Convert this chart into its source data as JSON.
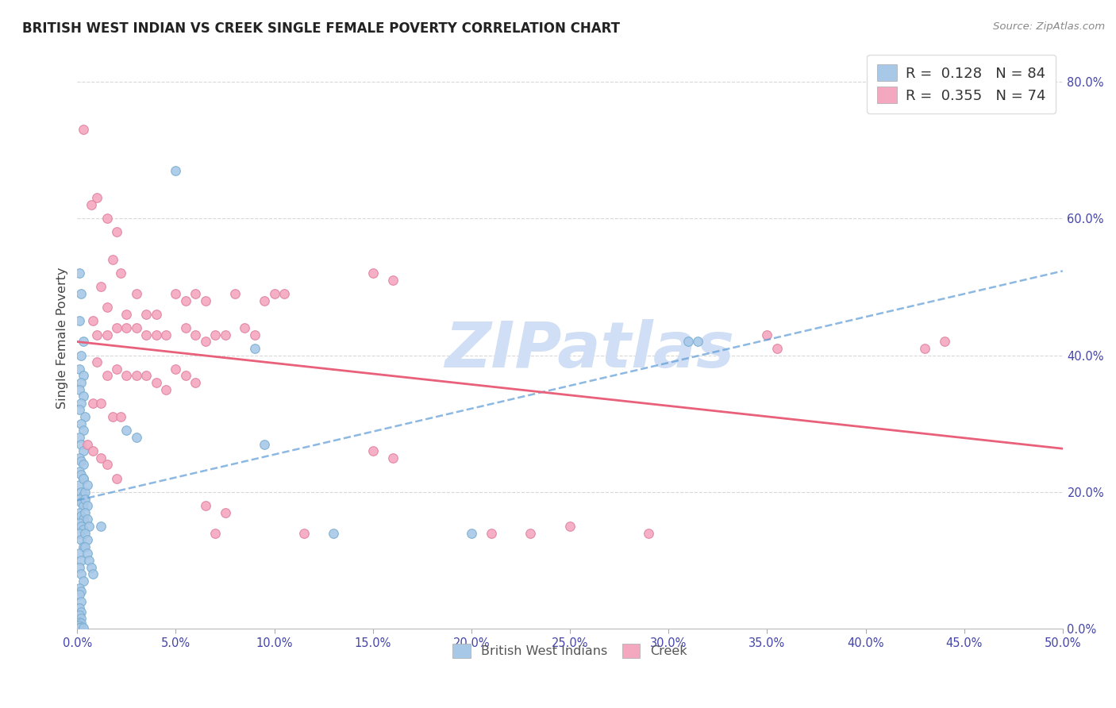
{
  "title": "BRITISH WEST INDIAN VS CREEK SINGLE FEMALE POVERTY CORRELATION CHART",
  "source": "Source: ZipAtlas.com",
  "ylabel": "Single Female Poverty",
  "x_min": 0.0,
  "x_max": 0.5,
  "y_min": 0.0,
  "y_max": 0.85,
  "x_ticks": [
    0.0,
    0.05,
    0.1,
    0.15,
    0.2,
    0.25,
    0.3,
    0.35,
    0.4,
    0.45,
    0.5
  ],
  "y_ticks_right": [
    0.0,
    0.2,
    0.4,
    0.6,
    0.8
  ],
  "blue_R": 0.128,
  "blue_N": 84,
  "pink_R": 0.355,
  "pink_N": 74,
  "blue_scatter": [
    [
      0.001,
      0.52
    ],
    [
      0.002,
      0.49
    ],
    [
      0.001,
      0.45
    ],
    [
      0.003,
      0.42
    ],
    [
      0.002,
      0.4
    ],
    [
      0.001,
      0.38
    ],
    [
      0.003,
      0.37
    ],
    [
      0.002,
      0.36
    ],
    [
      0.001,
      0.35
    ],
    [
      0.003,
      0.34
    ],
    [
      0.002,
      0.33
    ],
    [
      0.001,
      0.32
    ],
    [
      0.004,
      0.31
    ],
    [
      0.002,
      0.3
    ],
    [
      0.003,
      0.29
    ],
    [
      0.001,
      0.28
    ],
    [
      0.002,
      0.27
    ],
    [
      0.003,
      0.26
    ],
    [
      0.001,
      0.25
    ],
    [
      0.002,
      0.245
    ],
    [
      0.003,
      0.24
    ],
    [
      0.001,
      0.23
    ],
    [
      0.002,
      0.225
    ],
    [
      0.003,
      0.22
    ],
    [
      0.001,
      0.21
    ],
    [
      0.002,
      0.2
    ],
    [
      0.003,
      0.195
    ],
    [
      0.001,
      0.19
    ],
    [
      0.002,
      0.185
    ],
    [
      0.003,
      0.18
    ],
    [
      0.001,
      0.17
    ],
    [
      0.002,
      0.165
    ],
    [
      0.003,
      0.16
    ],
    [
      0.001,
      0.155
    ],
    [
      0.002,
      0.15
    ],
    [
      0.003,
      0.145
    ],
    [
      0.001,
      0.14
    ],
    [
      0.002,
      0.13
    ],
    [
      0.003,
      0.12
    ],
    [
      0.001,
      0.11
    ],
    [
      0.002,
      0.1
    ],
    [
      0.001,
      0.09
    ],
    [
      0.002,
      0.08
    ],
    [
      0.003,
      0.07
    ],
    [
      0.001,
      0.06
    ],
    [
      0.002,
      0.055
    ],
    [
      0.001,
      0.05
    ],
    [
      0.002,
      0.04
    ],
    [
      0.001,
      0.03
    ],
    [
      0.002,
      0.025
    ],
    [
      0.001,
      0.02
    ],
    [
      0.002,
      0.015
    ],
    [
      0.001,
      0.01
    ],
    [
      0.002,
      0.008
    ],
    [
      0.001,
      0.005
    ],
    [
      0.002,
      0.003
    ],
    [
      0.001,
      0.001
    ],
    [
      0.003,
      0.001
    ],
    [
      0.003,
      0.22
    ],
    [
      0.004,
      0.2
    ],
    [
      0.005,
      0.21
    ],
    [
      0.004,
      0.19
    ],
    [
      0.005,
      0.18
    ],
    [
      0.004,
      0.17
    ],
    [
      0.005,
      0.16
    ],
    [
      0.006,
      0.15
    ],
    [
      0.004,
      0.14
    ],
    [
      0.005,
      0.13
    ],
    [
      0.004,
      0.12
    ],
    [
      0.005,
      0.11
    ],
    [
      0.006,
      0.1
    ],
    [
      0.007,
      0.09
    ],
    [
      0.008,
      0.08
    ],
    [
      0.05,
      0.67
    ],
    [
      0.025,
      0.29
    ],
    [
      0.03,
      0.28
    ],
    [
      0.09,
      0.41
    ],
    [
      0.095,
      0.27
    ],
    [
      0.13,
      0.14
    ],
    [
      0.31,
      0.42
    ],
    [
      0.315,
      0.42
    ],
    [
      0.2,
      0.14
    ],
    [
      0.012,
      0.15
    ]
  ],
  "pink_scatter": [
    [
      0.003,
      0.73
    ],
    [
      0.01,
      0.63
    ],
    [
      0.007,
      0.62
    ],
    [
      0.015,
      0.6
    ],
    [
      0.02,
      0.58
    ],
    [
      0.018,
      0.54
    ],
    [
      0.022,
      0.52
    ],
    [
      0.012,
      0.5
    ],
    [
      0.03,
      0.49
    ],
    [
      0.015,
      0.47
    ],
    [
      0.025,
      0.46
    ],
    [
      0.035,
      0.46
    ],
    [
      0.04,
      0.46
    ],
    [
      0.05,
      0.49
    ],
    [
      0.055,
      0.48
    ],
    [
      0.06,
      0.49
    ],
    [
      0.065,
      0.48
    ],
    [
      0.08,
      0.49
    ],
    [
      0.095,
      0.48
    ],
    [
      0.1,
      0.49
    ],
    [
      0.105,
      0.49
    ],
    [
      0.15,
      0.52
    ],
    [
      0.16,
      0.51
    ],
    [
      0.008,
      0.45
    ],
    [
      0.01,
      0.43
    ],
    [
      0.015,
      0.43
    ],
    [
      0.02,
      0.44
    ],
    [
      0.025,
      0.44
    ],
    [
      0.03,
      0.44
    ],
    [
      0.035,
      0.43
    ],
    [
      0.04,
      0.43
    ],
    [
      0.045,
      0.43
    ],
    [
      0.055,
      0.44
    ],
    [
      0.06,
      0.43
    ],
    [
      0.065,
      0.42
    ],
    [
      0.07,
      0.43
    ],
    [
      0.075,
      0.43
    ],
    [
      0.085,
      0.44
    ],
    [
      0.09,
      0.43
    ],
    [
      0.01,
      0.39
    ],
    [
      0.015,
      0.37
    ],
    [
      0.02,
      0.38
    ],
    [
      0.025,
      0.37
    ],
    [
      0.03,
      0.37
    ],
    [
      0.035,
      0.37
    ],
    [
      0.04,
      0.36
    ],
    [
      0.045,
      0.35
    ],
    [
      0.05,
      0.38
    ],
    [
      0.055,
      0.37
    ],
    [
      0.06,
      0.36
    ],
    [
      0.008,
      0.33
    ],
    [
      0.012,
      0.33
    ],
    [
      0.018,
      0.31
    ],
    [
      0.022,
      0.31
    ],
    [
      0.005,
      0.27
    ],
    [
      0.008,
      0.26
    ],
    [
      0.012,
      0.25
    ],
    [
      0.015,
      0.24
    ],
    [
      0.02,
      0.22
    ],
    [
      0.15,
      0.26
    ],
    [
      0.16,
      0.25
    ],
    [
      0.35,
      0.43
    ],
    [
      0.355,
      0.41
    ],
    [
      0.29,
      0.14
    ],
    [
      0.21,
      0.14
    ],
    [
      0.115,
      0.14
    ],
    [
      0.07,
      0.14
    ],
    [
      0.075,
      0.17
    ],
    [
      0.065,
      0.18
    ],
    [
      0.25,
      0.15
    ],
    [
      0.23,
      0.14
    ],
    [
      0.44,
      0.42
    ],
    [
      0.43,
      0.41
    ]
  ],
  "blue_line_color": "#5b9bd5",
  "pink_line_color": "#e8607a",
  "blue_scatter_color": "#a8c8e8",
  "pink_scatter_color": "#f4a8c0",
  "blue_scatter_edge": "#7aaed0",
  "pink_scatter_edge": "#e080a0",
  "watermark_text": "ZIPatlas",
  "watermark_color": "#d0dff5",
  "background_color": "#ffffff",
  "grid_color": "#d8d8d8",
  "grid_style": "--"
}
